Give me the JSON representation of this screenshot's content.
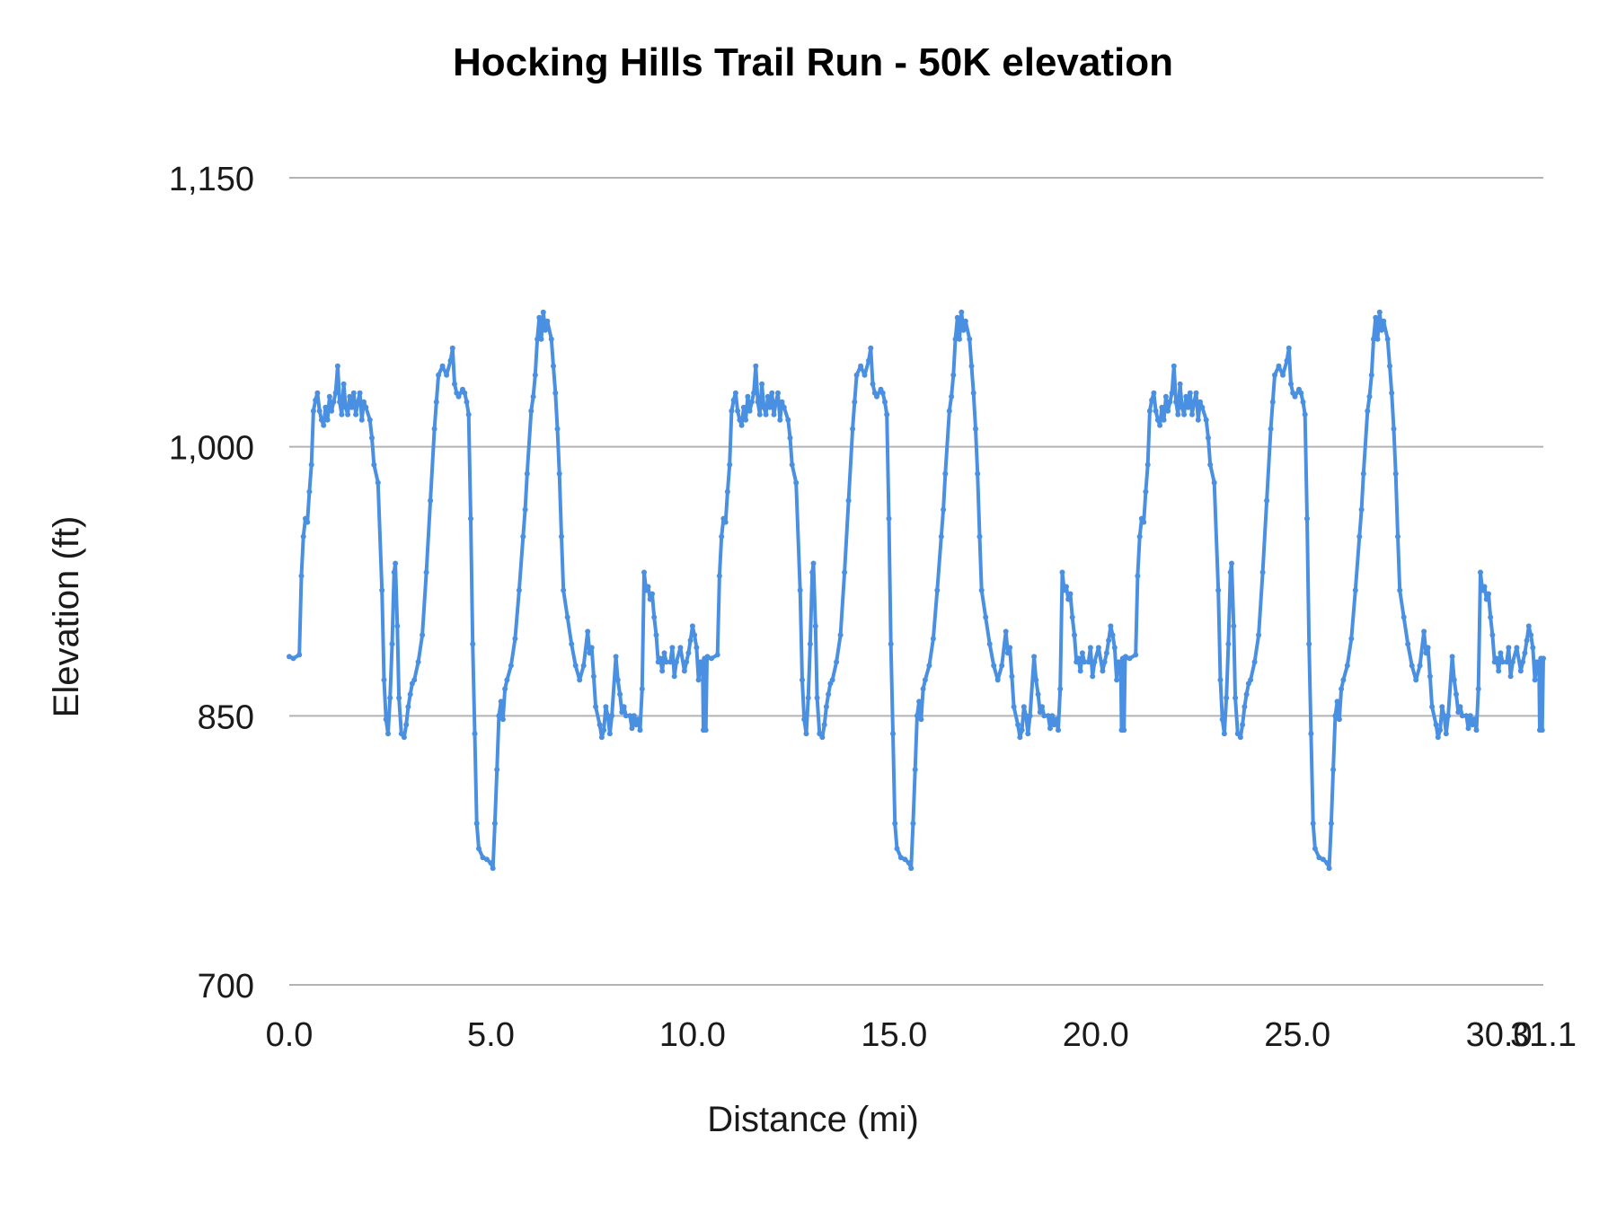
{
  "chart_data": {
    "type": "line",
    "title": "Hocking Hills Trail Run - 50K elevation",
    "xlabel": "Distance (mi)",
    "ylabel": "Elevation (ft)",
    "xlim": [
      0,
      31.1
    ],
    "ylim": [
      700,
      1150
    ],
    "x_ticks": [
      0,
      5,
      10,
      15,
      20,
      25,
      30,
      31.1
    ],
    "x_tick_labels": [
      "0.0",
      "5.0",
      "10.0",
      "15.0",
      "20.0",
      "25.0",
      "30.0",
      "31.1"
    ],
    "y_ticks": [
      700,
      850,
      1000,
      1150
    ],
    "y_tick_labels": [
      "700",
      "850",
      "1,000",
      "1,150"
    ],
    "grid": true,
    "legend": "none",
    "color": "#4a90e2",
    "lap_length": 10.37,
    "series": [
      {
        "points": [
          [
            0.0,
            883
          ],
          [
            0.1,
            882
          ],
          [
            0.25,
            884
          ],
          [
            0.3,
            928
          ],
          [
            0.35,
            950
          ],
          [
            0.4,
            960
          ],
          [
            0.45,
            958
          ],
          [
            0.5,
            975
          ],
          [
            0.55,
            990
          ],
          [
            0.6,
            1020
          ],
          [
            0.65,
            1026
          ],
          [
            0.7,
            1030
          ],
          [
            0.75,
            1020
          ],
          [
            0.8,
            1015
          ],
          [
            0.85,
            1012
          ],
          [
            0.9,
            1022
          ],
          [
            0.95,
            1015
          ],
          [
            1.0,
            1028
          ],
          [
            1.05,
            1020
          ],
          [
            1.1,
            1025
          ],
          [
            1.15,
            1030
          ],
          [
            1.2,
            1045
          ],
          [
            1.25,
            1025
          ],
          [
            1.3,
            1018
          ],
          [
            1.35,
            1035
          ],
          [
            1.4,
            1022
          ],
          [
            1.45,
            1018
          ],
          [
            1.5,
            1028
          ],
          [
            1.55,
            1022
          ],
          [
            1.6,
            1030
          ],
          [
            1.65,
            1018
          ],
          [
            1.7,
            1025
          ],
          [
            1.75,
            1030
          ],
          [
            1.8,
            1015
          ],
          [
            1.85,
            1025
          ],
          [
            1.9,
            1022
          ],
          [
            2.0,
            1015
          ],
          [
            2.05,
            1005
          ],
          [
            2.1,
            990
          ],
          [
            2.2,
            980
          ],
          [
            2.3,
            920
          ],
          [
            2.35,
            870
          ],
          [
            2.4,
            848
          ],
          [
            2.45,
            840
          ],
          [
            2.5,
            860
          ],
          [
            2.55,
            890
          ],
          [
            2.6,
            930
          ],
          [
            2.63,
            935
          ],
          [
            2.68,
            900
          ],
          [
            2.72,
            860
          ],
          [
            2.78,
            840
          ],
          [
            2.85,
            838
          ],
          [
            2.9,
            845
          ],
          [
            2.95,
            855
          ],
          [
            3.0,
            862
          ],
          [
            3.05,
            868
          ],
          [
            3.1,
            870
          ],
          [
            3.2,
            880
          ],
          [
            3.3,
            895
          ],
          [
            3.4,
            930
          ],
          [
            3.5,
            970
          ],
          [
            3.6,
            1010
          ],
          [
            3.65,
            1025
          ],
          [
            3.7,
            1040
          ],
          [
            3.8,
            1045
          ],
          [
            3.9,
            1040
          ],
          [
            4.0,
            1048
          ],
          [
            4.05,
            1055
          ],
          [
            4.1,
            1035
          ],
          [
            4.15,
            1030
          ],
          [
            4.2,
            1028
          ],
          [
            4.3,
            1032
          ],
          [
            4.35,
            1030
          ],
          [
            4.4,
            1025
          ],
          [
            4.45,
            1018
          ],
          [
            4.5,
            960
          ],
          [
            4.55,
            890
          ],
          [
            4.6,
            840
          ],
          [
            4.65,
            790
          ],
          [
            4.7,
            776
          ],
          [
            4.8,
            771
          ],
          [
            4.9,
            770
          ],
          [
            5.0,
            768
          ],
          [
            5.05,
            765
          ],
          [
            5.1,
            790
          ],
          [
            5.15,
            820
          ],
          [
            5.2,
            850
          ],
          [
            5.25,
            858
          ],
          [
            5.3,
            848
          ],
          [
            5.35,
            865
          ],
          [
            5.4,
            870
          ],
          [
            5.5,
            878
          ],
          [
            5.6,
            893
          ],
          [
            5.7,
            920
          ],
          [
            5.8,
            950
          ],
          [
            5.85,
            965
          ],
          [
            5.9,
            985
          ],
          [
            6.0,
            1020
          ],
          [
            6.05,
            1028
          ],
          [
            6.1,
            1040
          ],
          [
            6.15,
            1060
          ],
          [
            6.2,
            1072
          ],
          [
            6.25,
            1060
          ],
          [
            6.3,
            1075
          ],
          [
            6.35,
            1065
          ],
          [
            6.4,
            1070
          ],
          [
            6.5,
            1060
          ],
          [
            6.55,
            1045
          ],
          [
            6.6,
            1030
          ],
          [
            6.65,
            1010
          ],
          [
            6.7,
            985
          ],
          [
            6.75,
            950
          ],
          [
            6.8,
            920
          ],
          [
            6.9,
            905
          ],
          [
            7.0,
            890
          ],
          [
            7.1,
            878
          ],
          [
            7.2,
            870
          ],
          [
            7.3,
            878
          ],
          [
            7.4,
            897
          ],
          [
            7.45,
            885
          ],
          [
            7.5,
            888
          ],
          [
            7.55,
            872
          ],
          [
            7.6,
            855
          ],
          [
            7.7,
            845
          ],
          [
            7.75,
            838
          ],
          [
            7.8,
            842
          ],
          [
            7.85,
            855
          ],
          [
            7.9,
            850
          ],
          [
            7.95,
            840
          ],
          [
            8.0,
            850
          ],
          [
            8.1,
            883
          ],
          [
            8.15,
            870
          ],
          [
            8.2,
            862
          ],
          [
            8.25,
            852
          ],
          [
            8.3,
            855
          ],
          [
            8.35,
            850
          ],
          [
            8.45,
            850
          ],
          [
            8.5,
            843
          ],
          [
            8.55,
            850
          ],
          [
            8.6,
            845
          ],
          [
            8.65,
            848
          ],
          [
            8.7,
            842
          ],
          [
            8.75,
            865
          ],
          [
            8.8,
            930
          ],
          [
            8.85,
            920
          ],
          [
            8.9,
            922
          ],
          [
            8.95,
            915
          ],
          [
            9.0,
            918
          ],
          [
            9.05,
            905
          ],
          [
            9.1,
            895
          ],
          [
            9.15,
            880
          ],
          [
            9.2,
            882
          ],
          [
            9.25,
            875
          ],
          [
            9.3,
            885
          ],
          [
            9.35,
            880
          ],
          [
            9.45,
            880
          ],
          [
            9.5,
            888
          ],
          [
            9.55,
            872
          ],
          [
            9.6,
            880
          ],
          [
            9.7,
            888
          ],
          [
            9.8,
            875
          ],
          [
            9.85,
            880
          ],
          [
            9.9,
            885
          ],
          [
            9.95,
            892
          ],
          [
            10.0,
            900
          ],
          [
            10.05,
            895
          ],
          [
            10.1,
            888
          ],
          [
            10.15,
            870
          ],
          [
            10.2,
            880
          ],
          [
            10.25,
            880
          ],
          [
            10.27,
            842
          ],
          [
            10.3,
            882
          ],
          [
            10.33,
            842
          ],
          [
            10.36,
            882
          ]
        ]
      }
    ]
  }
}
